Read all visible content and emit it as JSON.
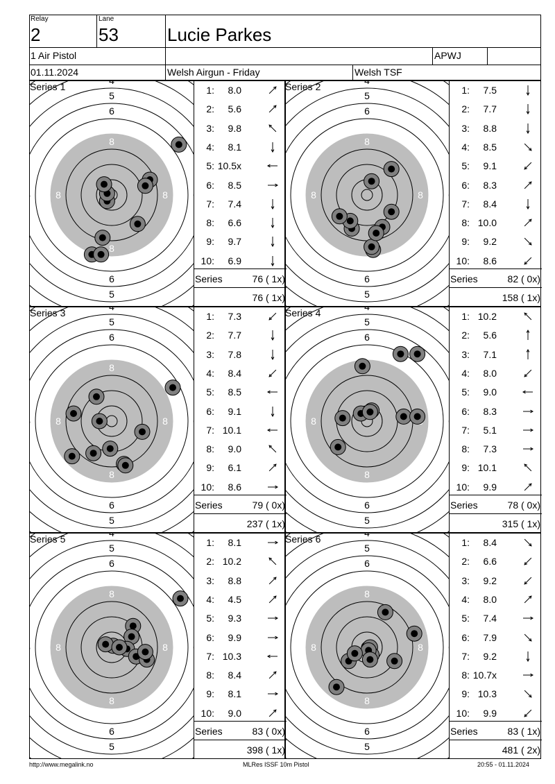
{
  "header": {
    "relay_label": "Relay",
    "relay": "2",
    "lane_label": "Lane",
    "lane": "53",
    "name": "Lucie Parkes",
    "event": "1 Air Pistol",
    "club_code": "APWJ",
    "date": "01.11.2024",
    "competition": "Welsh Airgun - Friday",
    "organizer": "Welsh TSF"
  },
  "series_label": "Series",
  "series": [
    {
      "title": "Series 1",
      "shots": [
        {
          "n": "1:",
          "v": "8.0",
          "dir": "NE",
          "x": 1.7,
          "y": -1.9
        },
        {
          "n": "2:",
          "v": "5.6",
          "dir": "NE",
          "x": 4.4,
          "y": 3.3
        },
        {
          "n": "3:",
          "v": "9.8",
          "dir": "NW",
          "x": -0.3,
          "y": -0.4
        },
        {
          "n": "4:",
          "v": "8.1",
          "dir": "S",
          "x": 2.5,
          "y": 1.0
        },
        {
          "n": "5:",
          "v": "10.5x",
          "dir": "W",
          "x": -0.3,
          "y": 0.1
        },
        {
          "n": "6:",
          "v": "8.5",
          "dir": "E",
          "x": 2.2,
          "y": 0.6
        },
        {
          "n": "7:",
          "v": "7.4",
          "dir": "S",
          "x": -0.6,
          "y": -2.8
        },
        {
          "n": "8:",
          "v": "6.6",
          "dir": "S",
          "x": -1.3,
          "y": -3.9
        },
        {
          "n": "9:",
          "v": "9.7",
          "dir": "S",
          "x": -0.5,
          "y": 0.7
        },
        {
          "n": "10:",
          "v": "6.9",
          "dir": "S",
          "x": -0.7,
          "y": -3.9
        }
      ],
      "series_total": "76 ( 1x)",
      "running_total": "76 ( 1x)"
    },
    {
      "title": "Series 2",
      "shots": [
        {
          "n": "1:",
          "v": "7.5",
          "dir": "S",
          "x": 0.4,
          "y": -3.6
        },
        {
          "n": "2:",
          "v": "7.7",
          "dir": "S",
          "x": 0.3,
          "y": -3.4
        },
        {
          "n": "3:",
          "v": "8.8",
          "dir": "S",
          "x": 1.0,
          "y": -2.1
        },
        {
          "n": "4:",
          "v": "8.5",
          "dir": "SE",
          "x": -1.0,
          "y": -2.2
        },
        {
          "n": "5:",
          "v": "9.1",
          "dir": "SW",
          "x": 0.3,
          "y": 0.9
        },
        {
          "n": "6:",
          "v": "8.3",
          "dir": "NE",
          "x": 1.6,
          "y": 1.7
        },
        {
          "n": "7:",
          "v": "8.4",
          "dir": "S",
          "x": -1.1,
          "y": -1.7
        },
        {
          "n": "8:",
          "v": "10.0",
          "dir": "NE",
          "x": 0.6,
          "y": -2.5
        },
        {
          "n": "9:",
          "v": "9.2",
          "dir": "SE",
          "x": 1.6,
          "y": -1.1
        },
        {
          "n": "10:",
          "v": "8.6",
          "dir": "SW",
          "x": -1.8,
          "y": -1.4
        }
      ],
      "series_total": "82 ( 0x)",
      "running_total": "158 ( 1x)"
    },
    {
      "title": "Series 3",
      "shots": [
        {
          "n": "1:",
          "v": "7.3",
          "dir": "SW",
          "x": -2.5,
          "y": 0.5
        },
        {
          "n": "2:",
          "v": "7.7",
          "dir": "S",
          "x": 2.0,
          "y": -0.7
        },
        {
          "n": "3:",
          "v": "7.8",
          "dir": "S",
          "x": 0.8,
          "y": -2.8
        },
        {
          "n": "4:",
          "v": "8.4",
          "dir": "SW",
          "x": -1.0,
          "y": 1.6
        },
        {
          "n": "5:",
          "v": "8.5",
          "dir": "W",
          "x": -1.2,
          "y": -2.1
        },
        {
          "n": "6:",
          "v": "9.1",
          "dir": "S",
          "x": -0.8,
          "y": 0.0
        },
        {
          "n": "7:",
          "v": "10.1",
          "dir": "W",
          "x": -0.1,
          "y": -1.8
        },
        {
          "n": "8:",
          "v": "9.0",
          "dir": "NW",
          "x": 0.9,
          "y": -2.9
        },
        {
          "n": "9:",
          "v": "6.1",
          "dir": "NE",
          "x": 4.0,
          "y": 2.2
        },
        {
          "n": "10:",
          "v": "8.6",
          "dir": "E",
          "x": -2.6,
          "y": -2.3
        }
      ],
      "series_total": "79 ( 0x)",
      "running_total": "237 ( 1x)"
    },
    {
      "title": "Series 4",
      "shots": [
        {
          "n": "1:",
          "v": "10.2",
          "dir": "NW",
          "x": 2.2,
          "y": 4.4
        },
        {
          "n": "2:",
          "v": "5.6",
          "dir": "N",
          "x": 3.3,
          "y": 4.4
        },
        {
          "n": "3:",
          "v": "7.1",
          "dir": "N",
          "x": -0.3,
          "y": 3.6
        },
        {
          "n": "4:",
          "v": "8.0",
          "dir": "SW",
          "x": 0.3,
          "y": 0.7
        },
        {
          "n": "5:",
          "v": "9.0",
          "dir": "W",
          "x": -0.4,
          "y": 0.5
        },
        {
          "n": "6:",
          "v": "8.3",
          "dir": "E",
          "x": 2.4,
          "y": 0.3
        },
        {
          "n": "7:",
          "v": "5.1",
          "dir": "E",
          "x": 3.3,
          "y": 0.3
        },
        {
          "n": "8:",
          "v": "7.3",
          "dir": "E",
          "x": -1.6,
          "y": 0.2
        },
        {
          "n": "9:",
          "v": "10.1",
          "dir": "NW",
          "x": -1.9,
          "y": -1.7
        },
        {
          "n": "10:",
          "v": "9.9",
          "dir": "NE",
          "x": 0.2,
          "y": 0.6
        }
      ],
      "series_total": "78 ( 0x)",
      "running_total": "315 ( 1x)"
    },
    {
      "title": "Series 5",
      "shots": [
        {
          "n": "1:",
          "v": "8.1",
          "dir": "E",
          "x": 1.4,
          "y": 1.4
        },
        {
          "n": "2:",
          "v": "10.2",
          "dir": "NW",
          "x": 1.3,
          "y": 0.7
        },
        {
          "n": "3:",
          "v": "8.8",
          "dir": "NE",
          "x": 0.1,
          "y": 0.1
        },
        {
          "n": "4:",
          "v": "4.5",
          "dir": "NE",
          "x": 4.5,
          "y": 3.2
        },
        {
          "n": "5:",
          "v": "9.3",
          "dir": "E",
          "x": 1.0,
          "y": -0.1
        },
        {
          "n": "6:",
          "v": "9.9",
          "dir": "E",
          "x": 1.6,
          "y": -0.6
        },
        {
          "n": "7:",
          "v": "10.3",
          "dir": "W",
          "x": -0.4,
          "y": 0.2
        },
        {
          "n": "8:",
          "v": "8.4",
          "dir": "NE",
          "x": 2.3,
          "y": -0.8
        },
        {
          "n": "9:",
          "v": "8.1",
          "dir": "E",
          "x": 2.2,
          "y": -0.3
        },
        {
          "n": "10:",
          "v": "9.0",
          "dir": "NE",
          "x": 0.5,
          "y": 0.0
        }
      ],
      "series_total": "83 ( 0x)",
      "running_total": "398 ( 1x)"
    },
    {
      "title": "Series 6",
      "shots": [
        {
          "n": "1:",
          "v": "8.4",
          "dir": "SE",
          "x": 1.2,
          "y": 2.3
        },
        {
          "n": "2:",
          "v": "6.6",
          "dir": "SW",
          "x": -2.0,
          "y": -2.6
        },
        {
          "n": "3:",
          "v": "9.2",
          "dir": "SW",
          "x": 0.2,
          "y": 0.0
        },
        {
          "n": "4:",
          "v": "8.0",
          "dir": "NE",
          "x": 3.1,
          "y": 0.9
        },
        {
          "n": "5:",
          "v": "7.4",
          "dir": "E",
          "x": 1.8,
          "y": -0.9
        },
        {
          "n": "6:",
          "v": "7.9",
          "dir": "SE",
          "x": -1.2,
          "y": -0.9
        },
        {
          "n": "7:",
          "v": "9.2",
          "dir": "S",
          "x": 0.3,
          "y": -0.5
        },
        {
          "n": "8:",
          "v": "10.7x",
          "dir": "E",
          "x": 0.1,
          "y": -0.2
        },
        {
          "n": "9:",
          "v": "10.3",
          "dir": "SE",
          "x": -0.8,
          "y": -0.4
        },
        {
          "n": "10:",
          "v": "9.9",
          "dir": "SW",
          "x": 0.2,
          "y": -0.8
        }
      ],
      "series_total": "83 ( 1x)",
      "running_total": "481 ( 2x)"
    }
  ],
  "footer": {
    "url": "http://www.megalink.no",
    "software": "MLRes ISSF 10m Pistol",
    "timestamp": "20:55 - 01.11.2024"
  }
}
